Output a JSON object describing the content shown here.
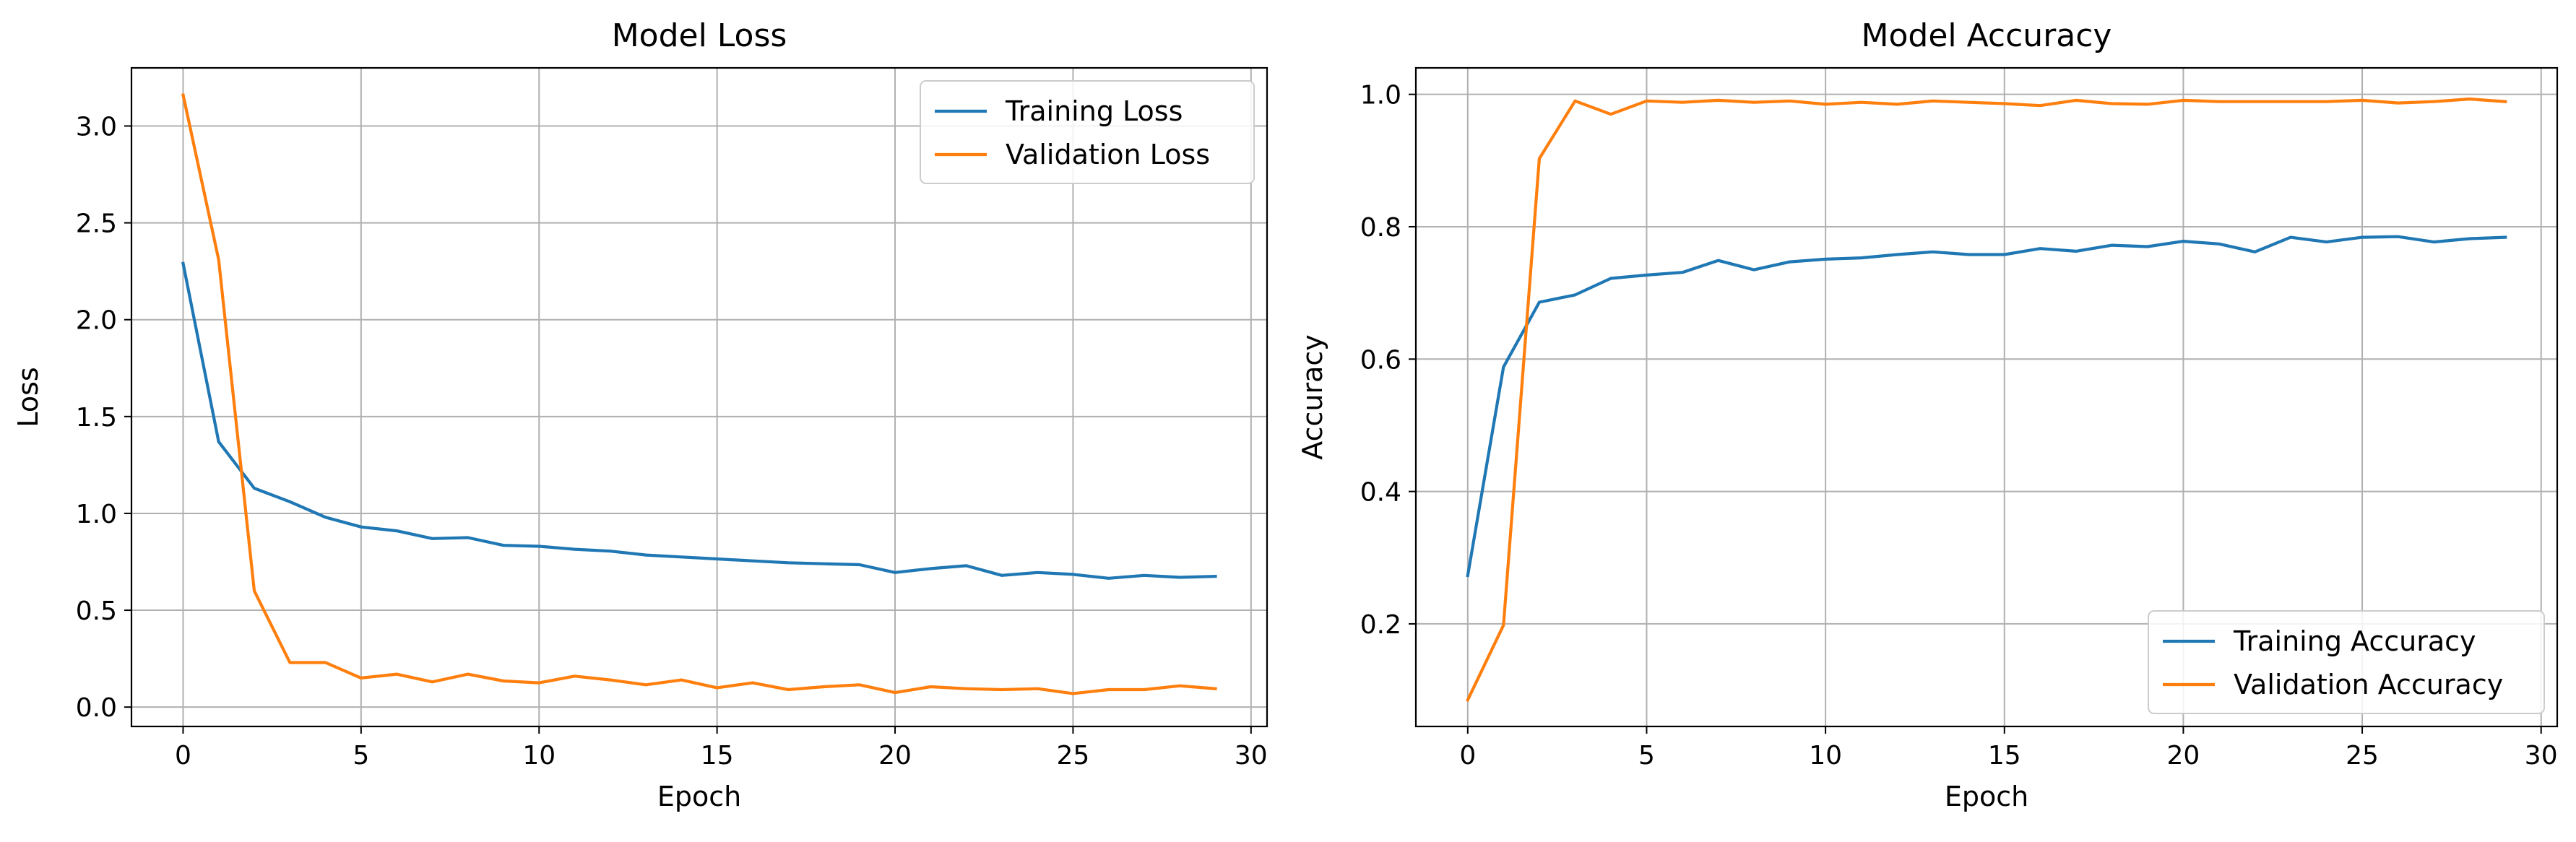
{
  "chart_data": [
    {
      "type": "line",
      "title": "Model Loss",
      "xlabel": "Epoch",
      "ylabel": "Loss",
      "xlim": [
        -1.45,
        30.45
      ],
      "ylim": [
        -0.1,
        3.3
      ],
      "xticks": [
        0,
        5,
        10,
        15,
        20,
        25,
        30
      ],
      "yticks": [
        0.0,
        0.5,
        1.0,
        1.5,
        2.0,
        2.5,
        3.0
      ],
      "xtick_labels": [
        "0",
        "5",
        "10",
        "15",
        "20",
        "25",
        "30"
      ],
      "ytick_labels": [
        "0.0",
        "0.5",
        "1.0",
        "1.5",
        "2.0",
        "2.5",
        "3.0"
      ],
      "grid": true,
      "legend_position": "upper right",
      "x": [
        0,
        1,
        2,
        3,
        4,
        5,
        6,
        7,
        8,
        9,
        10,
        11,
        12,
        13,
        14,
        15,
        16,
        17,
        18,
        19,
        20,
        21,
        22,
        23,
        24,
        25,
        26,
        27,
        28,
        29
      ],
      "series": [
        {
          "name": "Training Loss",
          "color": "#1f77b4",
          "values": [
            2.29,
            1.37,
            1.13,
            1.06,
            0.98,
            0.93,
            0.91,
            0.87,
            0.875,
            0.835,
            0.83,
            0.815,
            0.805,
            0.785,
            0.775,
            0.765,
            0.755,
            0.745,
            0.74,
            0.735,
            0.695,
            0.715,
            0.73,
            0.68,
            0.695,
            0.685,
            0.665,
            0.68,
            0.67,
            0.675
          ]
        },
        {
          "name": "Validation Loss",
          "color": "#ff7f0e",
          "values": [
            3.16,
            2.31,
            0.6,
            0.23,
            0.23,
            0.15,
            0.17,
            0.13,
            0.17,
            0.135,
            0.125,
            0.16,
            0.14,
            0.115,
            0.14,
            0.1,
            0.125,
            0.09,
            0.105,
            0.115,
            0.075,
            0.105,
            0.095,
            0.09,
            0.095,
            0.07,
            0.09,
            0.09,
            0.11,
            0.095
          ]
        }
      ]
    },
    {
      "type": "line",
      "title": "Model Accuracy",
      "xlabel": "Epoch",
      "ylabel": "Accuracy",
      "xlim": [
        -1.45,
        30.45
      ],
      "ylim": [
        0.045,
        1.04
      ],
      "xticks": [
        0,
        5,
        10,
        15,
        20,
        25,
        30
      ],
      "yticks": [
        0.2,
        0.4,
        0.6,
        0.8,
        1.0
      ],
      "xtick_labels": [
        "0",
        "5",
        "10",
        "15",
        "20",
        "25",
        "30"
      ],
      "ytick_labels": [
        "0.2",
        "0.4",
        "0.6",
        "0.8",
        "1.0"
      ],
      "grid": true,
      "legend_position": "lower right",
      "x": [
        0,
        1,
        2,
        3,
        4,
        5,
        6,
        7,
        8,
        9,
        10,
        11,
        12,
        13,
        14,
        15,
        16,
        17,
        18,
        19,
        20,
        21,
        22,
        23,
        24,
        25,
        26,
        27,
        28,
        29
      ],
      "series": [
        {
          "name": "Training Accuracy",
          "color": "#1f77b4",
          "values": [
            0.273,
            0.588,
            0.686,
            0.697,
            0.722,
            0.727,
            0.731,
            0.749,
            0.735,
            0.747,
            0.751,
            0.753,
            0.758,
            0.762,
            0.758,
            0.758,
            0.767,
            0.763,
            0.772,
            0.77,
            0.778,
            0.774,
            0.762,
            0.784,
            0.777,
            0.784,
            0.785,
            0.777,
            0.782,
            0.784
          ]
        },
        {
          "name": "Validation Accuracy",
          "color": "#ff7f0e",
          "values": [
            0.085,
            0.198,
            0.903,
            0.99,
            0.97,
            0.99,
            0.988,
            0.991,
            0.988,
            0.99,
            0.985,
            0.988,
            0.985,
            0.99,
            0.988,
            0.986,
            0.983,
            0.991,
            0.986,
            0.985,
            0.991,
            0.989,
            0.989,
            0.989,
            0.989,
            0.991,
            0.987,
            0.989,
            0.993,
            0.989
          ]
        }
      ]
    }
  ]
}
